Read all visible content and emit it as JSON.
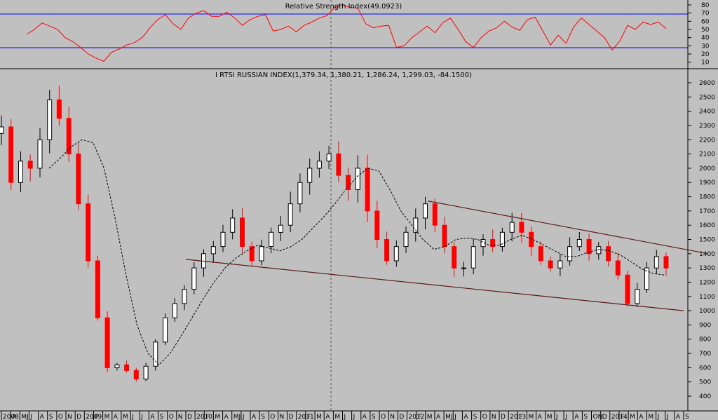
{
  "chart_data": [
    {
      "type": "line",
      "title": "Relative Strength Index(49.0923)",
      "ylim": [
        2,
        86
      ],
      "y_ticks": [
        10,
        20,
        30,
        40,
        50,
        60,
        70,
        80
      ],
      "reference_lines": [
        70,
        30
      ],
      "grid": false,
      "series": [
        {
          "values": [
            44,
            50,
            58,
            54,
            50,
            40,
            35,
            28,
            20,
            15,
            11,
            22,
            26,
            31,
            34,
            40,
            52,
            62,
            68,
            57,
            50,
            64,
            70,
            73,
            66,
            66,
            71,
            64,
            55,
            62,
            66,
            68,
            48,
            50,
            54,
            47,
            55,
            59,
            64,
            67,
            77,
            80,
            77,
            76,
            57,
            52,
            54,
            55,
            28,
            30,
            40,
            47,
            54,
            46,
            58,
            64,
            50,
            35,
            28,
            40,
            48,
            52,
            60,
            53,
            49,
            62,
            65,
            48,
            31,
            43,
            33,
            53,
            64,
            56,
            48,
            40,
            25,
            36,
            55,
            50,
            59,
            56,
            59,
            51
          ]
        }
      ]
    },
    {
      "type": "bar",
      "subtype": "ohlc",
      "title": "I RTSI RUSSIAN INDEX(1,379.34, 1,380.21, 1,286.24, 1,299.03, -84.1500)",
      "ylim": [
        280,
        2700
      ],
      "y_ticks": [
        400,
        500,
        600,
        700,
        800,
        900,
        1000,
        1100,
        1200,
        1300,
        1400,
        1500,
        1600,
        1700,
        1800,
        1900,
        2000,
        2100,
        2200,
        2300,
        2400,
        2500,
        2600
      ],
      "grid": false,
      "x_labels": [
        "2008",
        "A",
        "MJ",
        "J",
        "A",
        "S",
        "O",
        "N",
        "D",
        "2009",
        "F",
        "M",
        "A",
        "M",
        "J",
        "J",
        "A",
        "S",
        "O",
        "N",
        "D",
        "2010",
        "F",
        "M",
        "A",
        "MJ",
        "J",
        "A",
        "S",
        "O",
        "N",
        "D",
        "2011",
        "F",
        "M",
        "A",
        "M",
        "J",
        "J",
        "A",
        "S",
        "O",
        "N",
        "D",
        "2012",
        "F",
        "M",
        "A",
        "MJ",
        "J",
        "A",
        "S",
        "O",
        "N",
        "D",
        "2013",
        "F",
        "M",
        "A",
        "M",
        "J",
        "J",
        "A",
        "S",
        "ON",
        "D",
        "2014",
        "F",
        "M",
        "A",
        "M",
        "J",
        "J",
        "A",
        "S"
      ],
      "series": [
        {
          "name": "close",
          "values": [
            2290,
            1900,
            2050,
            2000,
            2200,
            2480,
            2350,
            2100,
            1750,
            1350,
            950,
            600,
            620,
            580,
            520,
            610,
            780,
            950,
            1050,
            1150,
            1300,
            1400,
            1450,
            1550,
            1650,
            1450,
            1350,
            1450,
            1550,
            1600,
            1750,
            1900,
            2000,
            2050,
            2100,
            1950,
            1850,
            2000,
            1700,
            1500,
            1350,
            1450,
            1550,
            1650,
            1750,
            1600,
            1450,
            1300,
            1300,
            1450,
            1500,
            1450,
            1550,
            1620,
            1550,
            1450,
            1350,
            1300,
            1350,
            1450,
            1500,
            1400,
            1450,
            1350,
            1250,
            1050,
            1150,
            1300,
            1380,
            1300
          ]
        },
        {
          "name": "moving average",
          "values": [
            2000,
            2070,
            2150,
            2200,
            2180,
            2000,
            1650,
            1250,
            900,
            700,
            620,
            700,
            820,
            950,
            1080,
            1200,
            1300,
            1370,
            1420,
            1460,
            1440,
            1420,
            1450,
            1500,
            1580,
            1660,
            1750,
            1850,
            1940,
            2000,
            1980,
            1850,
            1700,
            1600,
            1500,
            1430,
            1450,
            1500,
            1510,
            1500,
            1460,
            1460,
            1500,
            1530,
            1500,
            1460,
            1420,
            1380,
            1380,
            1410,
            1430,
            1420,
            1390,
            1340,
            1290,
            1260,
            1250
          ]
        },
        {
          "name": "upper trendline",
          "values": [
            1770,
            1400
          ]
        },
        {
          "name": "lower trendline",
          "values": [
            1360,
            1000
          ]
        }
      ]
    }
  ]
}
